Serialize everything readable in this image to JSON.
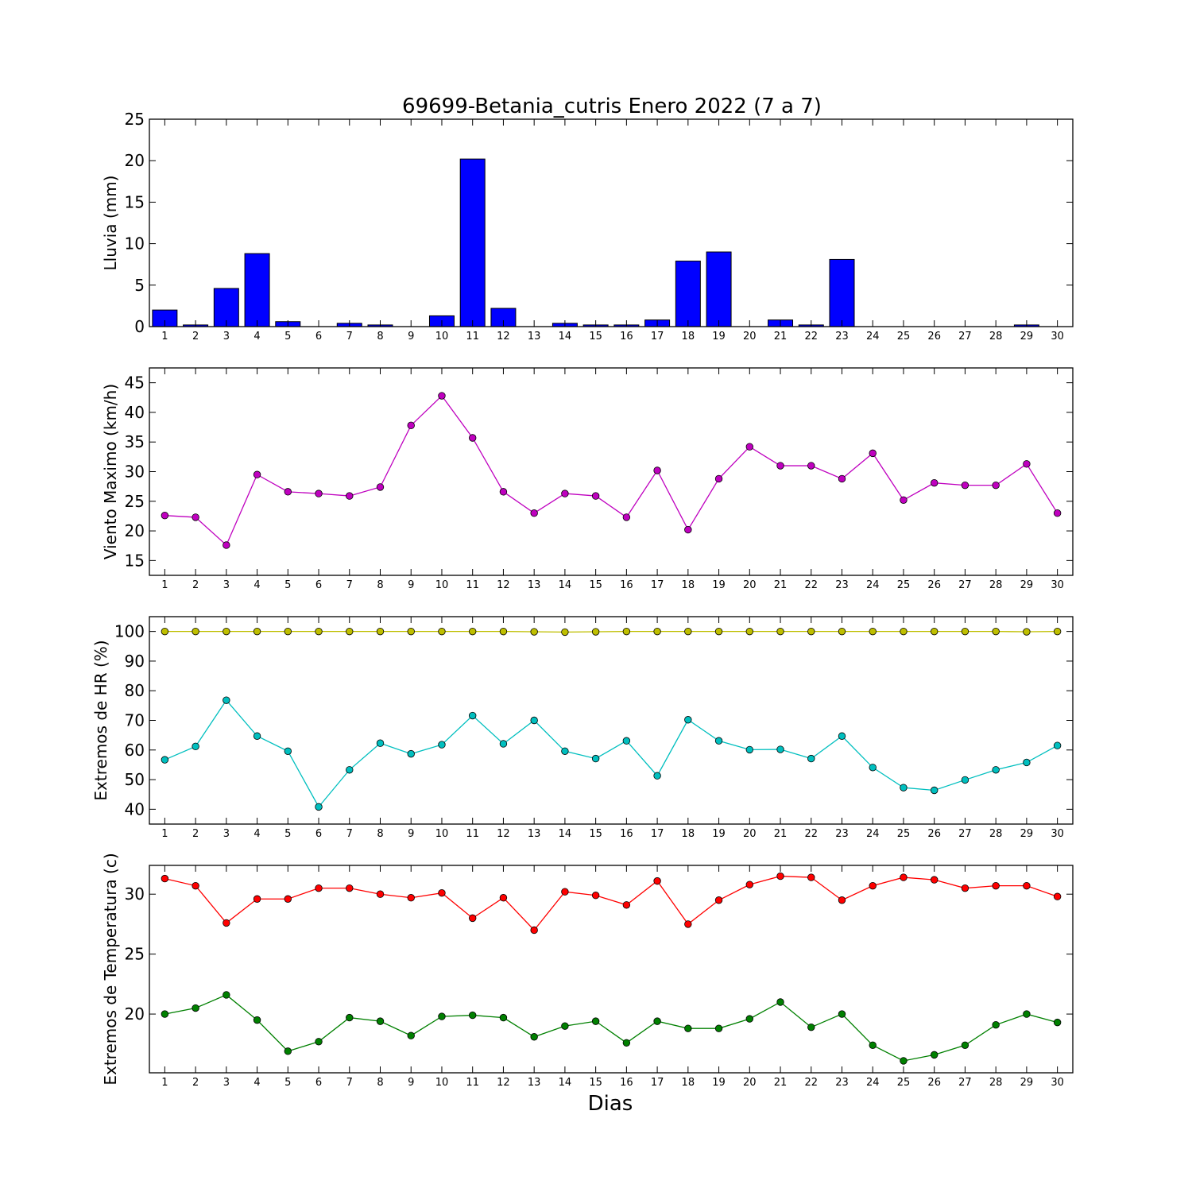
{
  "figure": {
    "title": "69699-Betania_cutris Enero 2022  (7 a 7)",
    "xlabel": "Dias"
  },
  "chart_data": [
    {
      "type": "bar",
      "ylabel": "Lluvia (mm)",
      "ylim": [
        0,
        25
      ],
      "yticks": [
        0,
        5,
        10,
        15,
        20,
        25
      ],
      "grid": false,
      "x": [
        1,
        2,
        3,
        4,
        5,
        6,
        7,
        8,
        9,
        10,
        11,
        12,
        13,
        14,
        15,
        16,
        17,
        18,
        19,
        20,
        21,
        22,
        23,
        24,
        25,
        26,
        27,
        28,
        29,
        30
      ],
      "series": [
        {
          "values": [
            2.0,
            0.2,
            4.6,
            8.8,
            0.6,
            0,
            0.4,
            0.2,
            0,
            1.3,
            20.2,
            2.2,
            0,
            0.4,
            0.2,
            0.2,
            0.8,
            7.9,
            9.0,
            0,
            0.8,
            0.2,
            8.1,
            0,
            0,
            0,
            0,
            0,
            0.2,
            0
          ],
          "color": "#0000ff"
        }
      ]
    },
    {
      "type": "line",
      "ylabel": "Viento Maximo (km/h)",
      "ylim": [
        12.5,
        47.5
      ],
      "yticks": [
        15,
        20,
        25,
        30,
        35,
        40,
        45
      ],
      "grid": false,
      "x": [
        1,
        2,
        3,
        4,
        5,
        6,
        7,
        8,
        9,
        10,
        11,
        12,
        13,
        14,
        15,
        16,
        17,
        18,
        19,
        20,
        21,
        22,
        23,
        24,
        25,
        26,
        27,
        28,
        29,
        30
      ],
      "series": [
        {
          "values": [
            22.6,
            22.3,
            17.6,
            29.5,
            26.6,
            26.3,
            25.9,
            27.4,
            37.8,
            42.8,
            35.7,
            26.6,
            23.0,
            26.3,
            25.9,
            22.3,
            30.2,
            20.2,
            28.8,
            34.2,
            31.0,
            31.0,
            28.8,
            33.1,
            25.2,
            28.1,
            27.7,
            27.7,
            31.3,
            23.0
          ],
          "color": "#bf00bf"
        }
      ]
    },
    {
      "type": "line",
      "ylabel": "Extremos de HR (%)",
      "ylim": [
        35,
        105
      ],
      "yticks": [
        40,
        50,
        60,
        70,
        80,
        90,
        100
      ],
      "grid": false,
      "x": [
        1,
        2,
        3,
        4,
        5,
        6,
        7,
        8,
        9,
        10,
        11,
        12,
        13,
        14,
        15,
        16,
        17,
        18,
        19,
        20,
        21,
        22,
        23,
        24,
        25,
        26,
        27,
        28,
        29,
        30
      ],
      "series": [
        {
          "values": [
            100,
            100,
            100,
            100,
            100,
            100,
            100,
            100,
            100,
            100,
            100,
            100,
            99.9,
            99.8,
            99.9,
            100,
            100,
            100,
            100,
            100,
            100,
            100,
            100,
            100,
            100,
            100,
            100,
            100,
            99.9,
            100
          ],
          "color": "#bfbf00"
        },
        {
          "values": [
            56.7,
            61.2,
            76.8,
            64.7,
            59.6,
            40.8,
            53.3,
            62.3,
            58.7,
            61.8,
            71.6,
            62.1,
            70.0,
            59.6,
            57.1,
            63.1,
            51.3,
            70.2,
            63.1,
            60.1,
            60.2,
            57.1,
            64.7,
            54.1,
            47.3,
            46.4,
            49.9,
            53.3,
            55.8,
            61.5
          ],
          "color": "#00bfbf"
        }
      ]
    },
    {
      "type": "line",
      "ylabel": "Extremos de Temperatura (c)",
      "ylim": [
        15.1,
        32.4
      ],
      "yticks": [
        20,
        25,
        30
      ],
      "grid": false,
      "x": [
        1,
        2,
        3,
        4,
        5,
        6,
        7,
        8,
        9,
        10,
        11,
        12,
        13,
        14,
        15,
        16,
        17,
        18,
        19,
        20,
        21,
        22,
        23,
        24,
        25,
        26,
        27,
        28,
        29,
        30
      ],
      "series": [
        {
          "values": [
            31.3,
            30.7,
            27.6,
            29.6,
            29.6,
            30.5,
            30.5,
            30.0,
            29.7,
            30.1,
            28.0,
            29.7,
            27.0,
            30.2,
            29.9,
            29.1,
            31.1,
            27.5,
            29.5,
            30.8,
            31.5,
            31.4,
            29.5,
            30.7,
            31.4,
            31.2,
            30.5,
            30.7,
            30.7,
            29.8
          ],
          "color": "#ff0000"
        },
        {
          "values": [
            20.0,
            20.5,
            21.6,
            19.5,
            16.9,
            17.7,
            19.7,
            19.4,
            18.2,
            19.8,
            19.9,
            19.7,
            18.1,
            19.0,
            19.4,
            17.6,
            19.4,
            18.8,
            18.8,
            19.6,
            21.0,
            18.9,
            20.0,
            17.4,
            16.1,
            16.6,
            17.4,
            19.1,
            20.0,
            19.3
          ],
          "color": "#008000"
        }
      ]
    }
  ]
}
